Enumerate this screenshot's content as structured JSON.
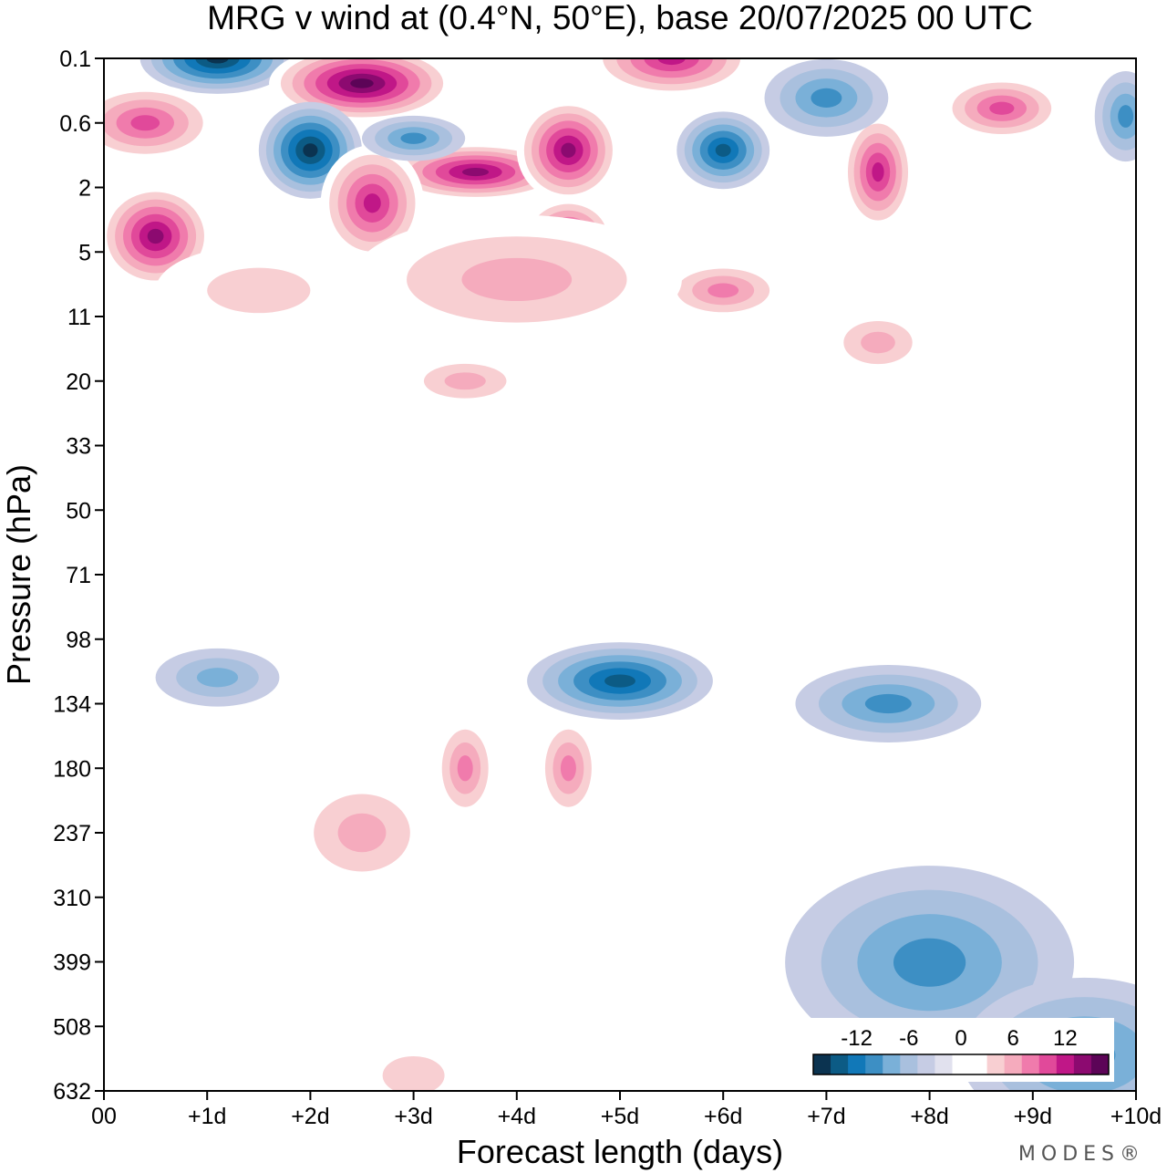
{
  "chart_data": {
    "type": "heatmap",
    "title": "MRG v wind at (0.4°N, 50°E),  base 20/07/2025  00 UTC",
    "xlabel": "Forecast length (days)",
    "ylabel": "Pressure (hPa)",
    "x_ticks": [
      "00",
      "+1d",
      "+2d",
      "+3d",
      "+4d",
      "+5d",
      "+6d",
      "+7d",
      "+8d",
      "+9d",
      "+10d"
    ],
    "xlim": [
      0,
      10
    ],
    "y_ticks": [
      "0.1",
      "0.6",
      "2",
      "5",
      "11",
      "20",
      "33",
      "50",
      "71",
      "98",
      "134",
      "180",
      "237",
      "310",
      "399",
      "508",
      "632"
    ],
    "colorbar": {
      "labels": [
        "-12",
        "-6",
        "0",
        "6",
        "12"
      ],
      "levels": [
        -16,
        -14,
        -12,
        -10,
        -8,
        -6,
        -4,
        -2,
        0,
        2,
        4,
        6,
        8,
        10,
        12,
        14,
        16
      ],
      "colors": [
        "#0b3350",
        "#0c5b85",
        "#1178b8",
        "#3d8fc4",
        "#7ab0d8",
        "#a9c0de",
        "#c6cce4",
        "#e1e1ee",
        "#ffffff",
        "#ffffff",
        "#f8cfd2",
        "#f5abbd",
        "#f07bac",
        "#e1499a",
        "#c01787",
        "#8c0a70",
        "#5c0457"
      ]
    },
    "features": [
      {
        "x": 1.1,
        "p": "0.1",
        "v": -15,
        "rx": 0.75,
        "ry": 0.55
      },
      {
        "x": 2.5,
        "p": "0.2",
        "v": 16,
        "rx": 0.9,
        "ry": 0.6
      },
      {
        "x": 5.5,
        "p": "0.1",
        "v": 12,
        "rx": 0.8,
        "ry": 0.6
      },
      {
        "x": 0.4,
        "p": "0.6",
        "v": 11,
        "rx": 0.7,
        "ry": 0.6
      },
      {
        "x": 2.0,
        "p": "1",
        "v": -15,
        "rx": 0.5,
        "ry": 0.75
      },
      {
        "x": 3.6,
        "p": "1.5",
        "v": 15,
        "rx": 0.9,
        "ry": 0.45
      },
      {
        "x": 4.5,
        "p": "1",
        "v": 14,
        "rx": 0.5,
        "ry": 0.8
      },
      {
        "x": 2.6,
        "p": "2.5",
        "v": 13,
        "rx": 0.5,
        "ry": 0.9
      },
      {
        "x": 0.5,
        "p": "4",
        "v": 15,
        "rx": 0.55,
        "ry": 0.8
      },
      {
        "x": 4.5,
        "p": "4",
        "v": 12,
        "rx": 0.45,
        "ry": 0.6
      },
      {
        "x": 6.0,
        "p": "1",
        "v": -12,
        "rx": 0.45,
        "ry": 0.6
      },
      {
        "x": 3.0,
        "p": "0.8",
        "v": -9,
        "rx": 0.5,
        "ry": 0.35
      },
      {
        "x": 7.5,
        "p": "1.5",
        "v": 12,
        "rx": 0.35,
        "ry": 0.9
      },
      {
        "x": 8.7,
        "p": "0.4",
        "v": 11,
        "rx": 0.6,
        "ry": 0.5
      },
      {
        "x": 7.0,
        "p": "0.3",
        "v": -8,
        "rx": 0.6,
        "ry": 0.6
      },
      {
        "x": 9.9,
        "p": "0.5",
        "v": -8,
        "rx": 0.3,
        "ry": 0.7
      },
      {
        "x": 6.0,
        "p": "8",
        "v": 8,
        "rx": 0.6,
        "ry": 0.45
      },
      {
        "x": 4.0,
        "p": "7",
        "v": 6,
        "rx": 1.6,
        "ry": 1.0
      },
      {
        "x": 1.5,
        "p": "8",
        "v": 4,
        "rx": 1.0,
        "ry": 0.7
      },
      {
        "x": 3.5,
        "p": "20",
        "v": 6,
        "rx": 0.6,
        "ry": 0.4
      },
      {
        "x": 7.5,
        "p": "14",
        "v": 6,
        "rx": 0.5,
        "ry": 0.5
      },
      {
        "x": 5.0,
        "p": "120",
        "v": -12,
        "rx": 0.9,
        "ry": 0.6
      },
      {
        "x": 7.6,
        "p": "134",
        "v": -8,
        "rx": 0.9,
        "ry": 0.6
      },
      {
        "x": 1.1,
        "p": "118",
        "v": -7,
        "rx": 0.6,
        "ry": 0.45
      },
      {
        "x": 3.5,
        "p": "180",
        "v": 8,
        "rx": 0.3,
        "ry": 0.8
      },
      {
        "x": 4.5,
        "p": "180",
        "v": 8,
        "rx": 0.3,
        "ry": 0.8
      },
      {
        "x": 2.5,
        "p": "237",
        "v": 7,
        "rx": 0.7,
        "ry": 0.9
      },
      {
        "x": 8.0,
        "p": "400",
        "v": -8,
        "rx": 1.4,
        "ry": 1.5
      },
      {
        "x": 9.5,
        "p": "560",
        "v": -9,
        "rx": 1.2,
        "ry": 1.2
      },
      {
        "x": 3.0,
        "p": "600",
        "v": 4,
        "rx": 0.6,
        "ry": 0.6
      }
    ]
  },
  "brand": {
    "label": "MODES®"
  }
}
